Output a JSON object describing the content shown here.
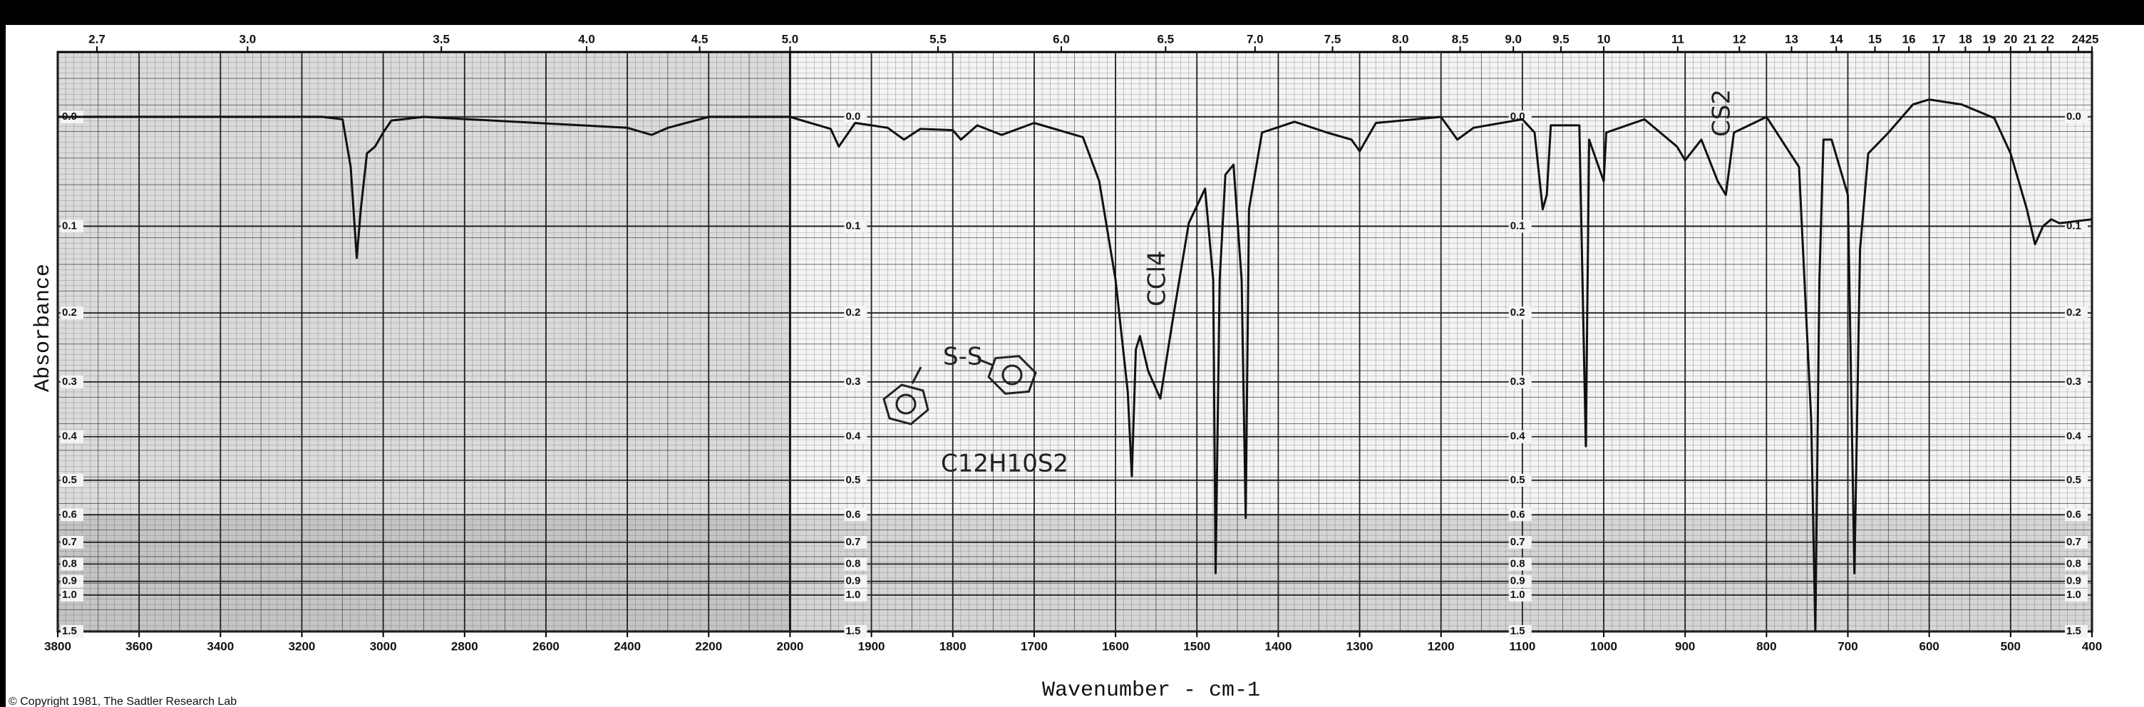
{
  "chart_data": {
    "type": "line",
    "xlabel": "Wavenumber - cm-1",
    "ylabel": "Absorbance",
    "copyright": "© Copyright 1981, The Sadtler Research Lab",
    "annotations": [
      "S-S",
      "C12H10S2",
      "CCl4",
      "CS2"
    ],
    "color": "#111111",
    "grid": true,
    "yscale": "absorbance",
    "xlim": [
      3800,
      400
    ],
    "x_break": 2000,
    "ylim": [
      -0.05,
      1.5
    ],
    "xticks": [
      3800,
      3600,
      3400,
      3200,
      3000,
      2800,
      2600,
      2400,
      2200,
      2000,
      1900,
      1800,
      1700,
      1600,
      1500,
      1400,
      1300,
      1200,
      1100,
      1000,
      900,
      800,
      700,
      600,
      500,
      400
    ],
    "x2ticks": [
      2.7,
      {
        "value": 3,
        "label": "3.0"
      },
      3.5,
      {
        "value": 4,
        "label": "4.0"
      },
      4.5,
      {
        "value": 5,
        "label": "5.0"
      },
      5.5,
      {
        "value": 6,
        "label": "6.0"
      },
      6.5,
      {
        "value": 7,
        "label": "7.0"
      },
      7.5,
      {
        "value": 8,
        "label": "8.0"
      },
      8.5,
      {
        "value": 9,
        "label": "9.0"
      },
      9.5,
      10,
      11,
      12,
      13,
      14,
      15,
      16,
      17,
      18,
      19,
      20,
      21,
      22,
      24,
      25
    ],
    "yticks": [
      {
        "value": 0,
        "label": "0.0"
      },
      0.1,
      0.2,
      0.3,
      0.4,
      0.5,
      0.6,
      0.7,
      0.8,
      0.9,
      {
        "value": 1,
        "label": "1.0"
      },
      1.5
    ],
    "x": [
      3800,
      3150,
      3100,
      3080,
      3065,
      3055,
      3040,
      3020,
      3000,
      2980,
      2900,
      2400,
      2340,
      2300,
      2200,
      2000,
      1950,
      1940,
      1920,
      1900,
      1880,
      1860,
      1840,
      1800,
      1790,
      1770,
      1740,
      1700,
      1640,
      1620,
      1600,
      1585,
      1580,
      1575,
      1570,
      1560,
      1545,
      1530,
      1510,
      1490,
      1480,
      1477,
      1472,
      1465,
      1455,
      1445,
      1440,
      1436,
      1420,
      1380,
      1340,
      1310,
      1300,
      1280,
      1200,
      1180,
      1160,
      1100,
      1085,
      1075,
      1070,
      1065,
      1030,
      1022,
      1018,
      1000,
      997,
      950,
      910,
      900,
      880,
      860,
      850,
      840,
      800,
      760,
      745,
      740,
      735,
      730,
      720,
      700,
      692,
      685,
      675,
      650,
      620,
      600,
      560,
      520,
      500,
      480,
      470,
      460,
      450,
      440,
      400
    ],
    "values": [
      0,
      0,
      0.002,
      0.043,
      0.134,
      0.083,
      0.031,
      0.025,
      0.013,
      0.003,
      0,
      0.009,
      0.015,
      0.009,
      0,
      0,
      0.01,
      0.025,
      0.005,
      0.007,
      0.009,
      0.019,
      0.01,
      0.011,
      0.019,
      0.007,
      0.015,
      0.005,
      0.017,
      0.056,
      0.159,
      0.316,
      0.49,
      0.25,
      0.231,
      0.282,
      0.328,
      0.211,
      0.097,
      0.063,
      0.159,
      0.85,
      0.159,
      0.05,
      0.041,
      0.159,
      0.61,
      0.083,
      0.013,
      0.004,
      0.013,
      0.019,
      0.029,
      0.005,
      0,
      0.019,
      0.009,
      0.002,
      0.013,
      0.083,
      0.069,
      0.007,
      0.007,
      0.42,
      0.019,
      0.056,
      0.013,
      0.002,
      0.025,
      0.037,
      0.019,
      0.056,
      0.069,
      0.013,
      0,
      0.043,
      0.367,
      1.5,
      0.159,
      0.019,
      0.019,
      0.069,
      0.85,
      0.125,
      0.031,
      0.013,
      -0.01,
      -0.014,
      -0.01,
      0.001,
      0.031,
      0.083,
      0.119,
      0.1,
      0.093,
      0.097,
      0.093
    ]
  }
}
